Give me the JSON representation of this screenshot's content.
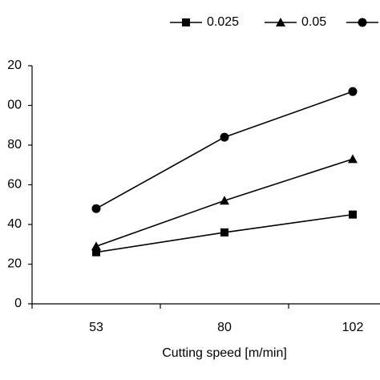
{
  "chart_data": {
    "type": "line",
    "x_label": "Cutting speed [m/min]",
    "categories": [
      "53",
      "80",
      "102"
    ],
    "series": [
      {
        "name": "0.025",
        "color": "#000000",
        "marker": "square",
        "values": [
          26,
          36,
          45
        ]
      },
      {
        "name": "0.05",
        "color": "#000000",
        "marker": "triangle",
        "values": [
          29,
          52,
          73
        ]
      },
      {
        "name": null,
        "color": "#000000",
        "marker": "circle",
        "values": [
          48,
          84,
          107
        ]
      }
    ],
    "ylim": [
      0,
      120
    ],
    "yticks": [
      0,
      20,
      40,
      60,
      80,
      {
        "value": 100,
        "label": "00"
      },
      {
        "value": 120,
        "label": "20"
      }
    ],
    "legend": "top"
  }
}
